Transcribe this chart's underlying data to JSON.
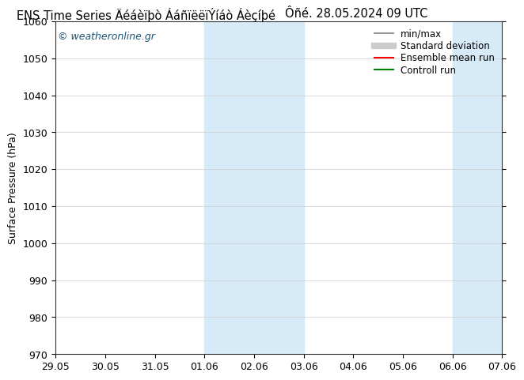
{
  "title_left": "ENS Time Series Äéáèïþò ÁáñïëëïÝíáò Áèçíþé",
  "title_right": "Ôñé. 28.05.2024 09 UTC",
  "ylabel": "Surface Pressure (hPa)",
  "ylim": [
    970,
    1060
  ],
  "yticks": [
    970,
    980,
    990,
    1000,
    1010,
    1020,
    1030,
    1040,
    1050,
    1060
  ],
  "xtick_labels": [
    "29.05",
    "30.05",
    "31.05",
    "01.06",
    "02.06",
    "03.06",
    "04.06",
    "05.06",
    "06.06",
    "07.06"
  ],
  "xtick_positions": [
    0,
    1,
    2,
    3,
    4,
    5,
    6,
    7,
    8,
    9
  ],
  "shade_bands": [
    {
      "xmin": 3,
      "xmax": 5
    },
    {
      "xmin": 8,
      "xmax": 9
    }
  ],
  "shade_color": "#d6eaf8",
  "watermark": "© weatheronline.gr",
  "watermark_color": "#1a5276",
  "legend_entries": [
    {
      "label": "min/max",
      "color": "#999999",
      "lw": 1.5
    },
    {
      "label": "Standard deviation",
      "color": "#cccccc",
      "lw": 6
    },
    {
      "label": "Ensemble mean run",
      "color": "red",
      "lw": 1.5
    },
    {
      "label": "Controll run",
      "color": "green",
      "lw": 1.5
    }
  ],
  "background_color": "#ffffff",
  "grid_color": "#cccccc",
  "title_fontsize": 10.5,
  "axis_label_fontsize": 9,
  "tick_fontsize": 9,
  "legend_fontsize": 8.5,
  "watermark_fontsize": 9
}
